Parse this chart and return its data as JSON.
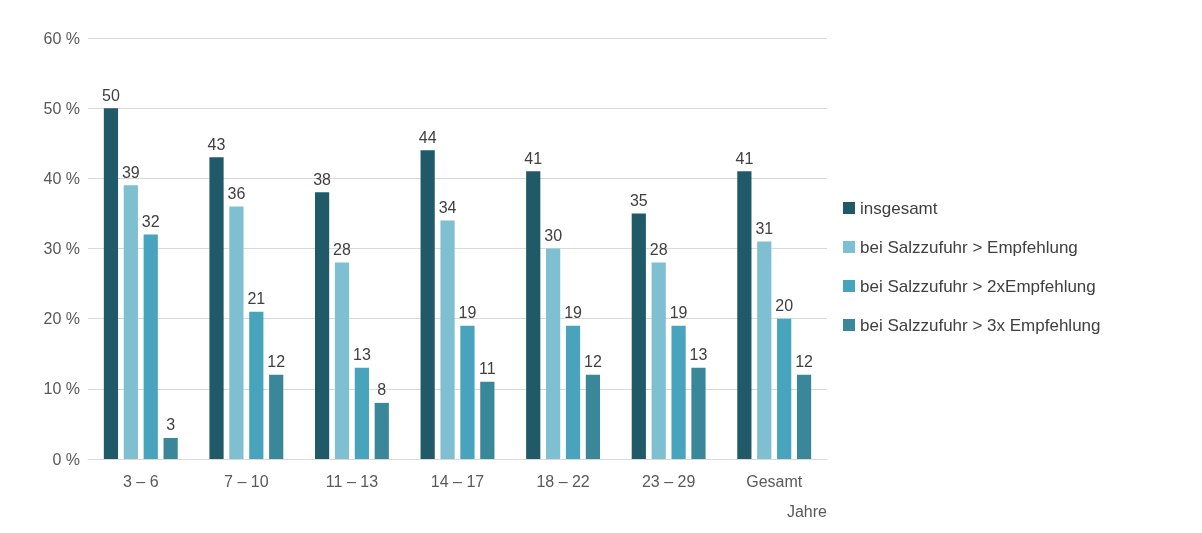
{
  "chart_data": {
    "type": "bar",
    "xlabel": "Jahre",
    "categories": [
      "3 – 6",
      "7 – 10",
      "11 – 13",
      "14 – 17",
      "18 – 22",
      "23 – 29",
      "Gesamt"
    ],
    "series": [
      {
        "name": "insgesamt",
        "color": "#205a69",
        "values": [
          50,
          43,
          38,
          44,
          41,
          35,
          41
        ]
      },
      {
        "name": "bei Salzzufuhr > Empfehlung",
        "color": "#7fbfd2",
        "values": [
          39,
          36,
          28,
          34,
          30,
          28,
          31
        ]
      },
      {
        "name": "bei Salzzufuhr > 2xEmpfehlung",
        "color": "#48a4bd",
        "values": [
          32,
          21,
          13,
          19,
          19,
          19,
          20
        ]
      },
      {
        "name": "bei Salzzufuhr > 3x Empfehlung",
        "color": "#3a8799",
        "values": [
          3,
          12,
          8,
          11,
          12,
          13,
          12
        ]
      }
    ],
    "ylim": [
      0,
      60
    ],
    "yticks": [
      {
        "value": 0,
        "label": "0 %"
      },
      {
        "value": 10,
        "label": "10 %"
      },
      {
        "value": 20,
        "label": "20 %"
      },
      {
        "value": 30,
        "label": "30 %"
      },
      {
        "value": 40,
        "label": "40 %"
      },
      {
        "value": 50,
        "label": "50 %"
      },
      {
        "value": 60,
        "label": "60 %"
      }
    ],
    "grid": "y",
    "legend": "right",
    "data_labels": true
  }
}
